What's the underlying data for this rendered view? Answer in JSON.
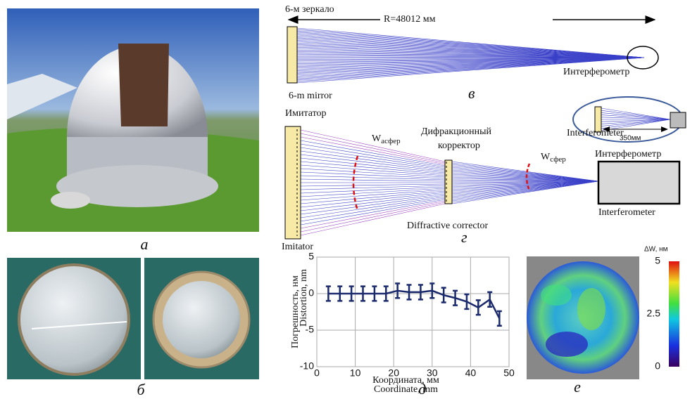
{
  "panels": {
    "a": "а",
    "b": "б",
    "v": "в",
    "g": "г",
    "d": "д",
    "e": "е"
  },
  "scheme_top": {
    "mirror_ru": "6-м зеркало",
    "radius": "R=48012 мм",
    "interferometer_ru": "Интерферометр",
    "mirror_en": "6-m mirror",
    "inset_interferometer": "Interferometer",
    "inset_distance": "350мм"
  },
  "scheme_bottom": {
    "imitator_ru": "Имитатор",
    "imitator_en": "Imitator",
    "w_asfer": {
      "letter": "W",
      "sub": "асфер"
    },
    "corrector_ru_1": "Дифракционный",
    "corrector_ru_2": "корректор",
    "corrector_en": "Diffractive corrector",
    "w_sfer": {
      "letter": "W",
      "sub": "сфер"
    },
    "interferometer_ru": "Интерферометр",
    "interferometer_en": "Interferometer"
  },
  "chart_data": {
    "type": "errorbar",
    "y_label_ru": "Погрешность, нм",
    "y_label_en": "Distortion, nm",
    "x_label_ru": "Координата, мм",
    "x_label_en": "Coordinate, mm",
    "x": [
      3,
      6,
      9,
      12,
      15,
      18,
      21,
      24,
      27,
      30,
      33,
      36,
      39,
      42,
      45,
      47.5
    ],
    "values": [
      0,
      0,
      0,
      0,
      0,
      0,
      0.4,
      0.2,
      0.2,
      0.4,
      -0.2,
      -0.6,
      -1.1,
      -1.9,
      -0.8,
      -3.4
    ],
    "errors": [
      1,
      1,
      1,
      1,
      1,
      1,
      1,
      1,
      1,
      1,
      1,
      1,
      1,
      1,
      1,
      1
    ],
    "color": "#1a2a6c",
    "xlim": [
      0,
      50
    ],
    "xticks": [
      0,
      10,
      20,
      30,
      40,
      50
    ],
    "ylim": [
      -10,
      5
    ],
    "yticks": [
      -10,
      -5,
      0,
      5
    ],
    "grid": true
  },
  "wavefront_map": {
    "title": "ΔW, нм",
    "colorbar_lim": [
      0,
      5
    ],
    "colorbar_ticks": [
      0,
      2.5,
      5
    ]
  }
}
